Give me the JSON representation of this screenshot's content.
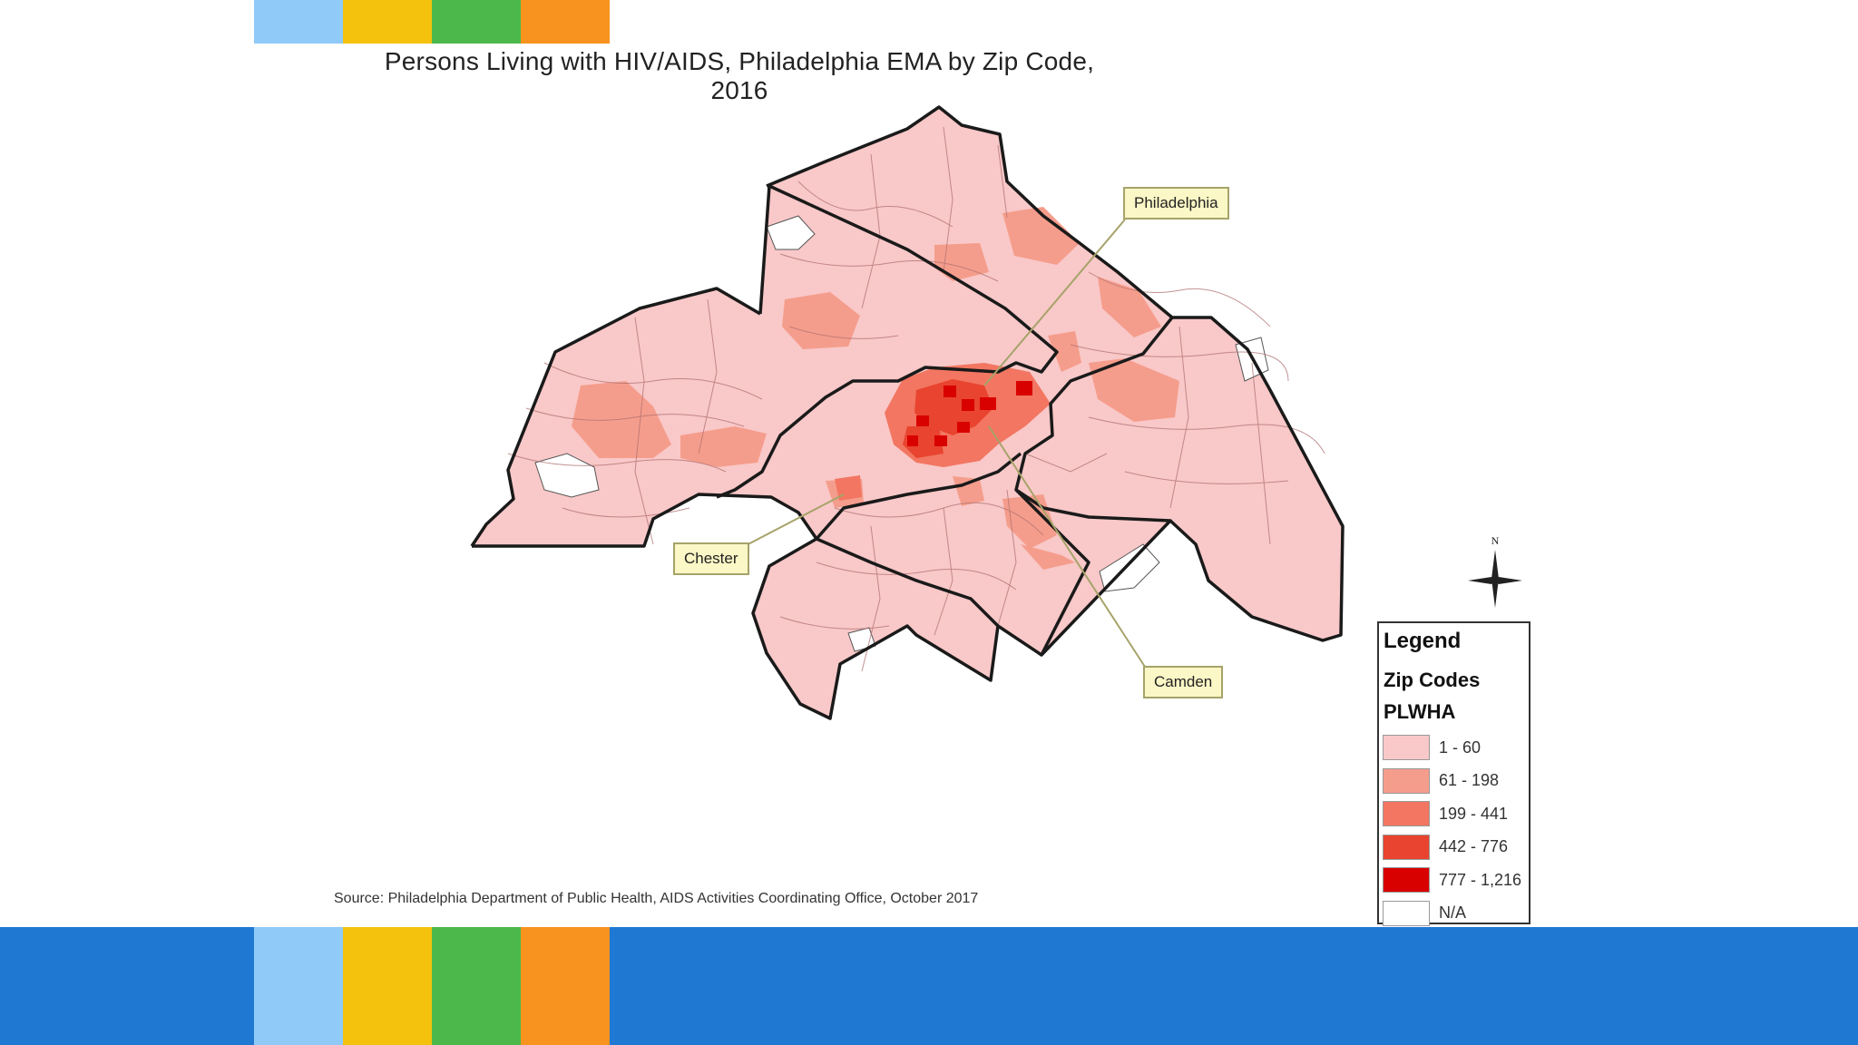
{
  "slide": {
    "top_stripe_colors": [
      "#90caf9",
      "#f4c20d",
      "#4cb84c",
      "#f7931e"
    ],
    "band_color": "#1f78d1"
  },
  "map": {
    "title": "Persons Living with HIV/AIDS, Philadelphia EMA by Zip Code, 2016",
    "callouts": {
      "philadelphia": "Philadelphia",
      "chester": "Chester",
      "camden": "Camden"
    },
    "compass_label": "N",
    "source": "Source: Philadelphia Department of Public Health, AIDS Activities Coordinating Office, October 2017"
  },
  "legend": {
    "title": "Legend",
    "layer": "Zip Codes",
    "field": "PLWHA",
    "classes": [
      {
        "label": "1 - 60",
        "color": "#f9c8c8"
      },
      {
        "label": "61 - 198",
        "color": "#f59d8c"
      },
      {
        "label": "199 - 441",
        "color": "#f27661"
      },
      {
        "label": "442 - 776",
        "color": "#e8442f"
      },
      {
        "label": "777 - 1,216",
        "color": "#d90000"
      },
      {
        "label": "N/A",
        "color": "#ffffff"
      }
    ]
  }
}
